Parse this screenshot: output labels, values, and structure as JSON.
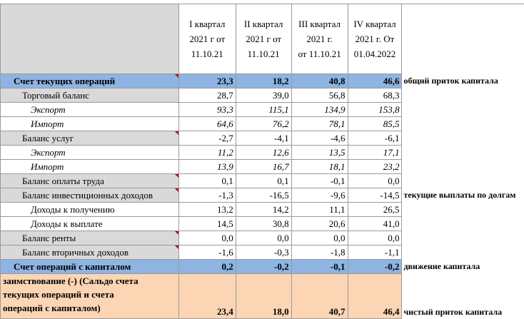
{
  "table": {
    "columns": [
      [
        "I квартал",
        "2021 г от",
        "11.10.21"
      ],
      [
        "II квартал",
        "2021 г от",
        "11.10.21"
      ],
      [
        "III квартал",
        "2021 г.",
        "от 11.10.21"
      ],
      [
        "IV квартал",
        "2021 г. От",
        "01.04.2022"
      ]
    ],
    "rows": [
      {
        "label": "Счет текущих операций",
        "values": [
          "23,3",
          "18,2",
          "40,8",
          "46,6"
        ],
        "note": "общий приток капитала"
      },
      {
        "label": "Торговый баланс",
        "values": [
          "28,7",
          "39,0",
          "56,8",
          "68,3"
        ]
      },
      {
        "label": "Экспорт",
        "values": [
          "93,3",
          "115,1",
          "134,9",
          "153,8"
        ]
      },
      {
        "label": "Импорт",
        "values": [
          "64,6",
          "76,2",
          "78,1",
          "85,5"
        ]
      },
      {
        "label": "Баланс услуг",
        "values": [
          "-2,7",
          "-4,1",
          "-4,6",
          "-6,1"
        ]
      },
      {
        "label": "Экспорт",
        "values": [
          "11,2",
          "12,6",
          "13,5",
          "17,1"
        ]
      },
      {
        "label": "Импорт",
        "values": [
          "13,9",
          "16,7",
          "18,1",
          "23,2"
        ]
      },
      {
        "label": "Баланс оплаты труда",
        "values": [
          "0,1",
          "0,1",
          "-0,1",
          "0,0"
        ]
      },
      {
        "label": "Баланс инвестиционных доходов",
        "values": [
          "-1,3",
          "-16,5",
          "-9,6",
          "-14,5"
        ],
        "note": "текущие выплаты по долгам"
      },
      {
        "label": "Доходы к получению",
        "values": [
          "13,2",
          "14,2",
          "11,1",
          "26,5"
        ]
      },
      {
        "label": "Доходы к выплате",
        "values": [
          "14,5",
          "30,8",
          "20,6",
          "41,0"
        ]
      },
      {
        "label": "Баланс ренты",
        "values": [
          "0,0",
          "0,0",
          "0,0",
          "0,0"
        ]
      },
      {
        "label": "Баланс вторичных доходов",
        "values": [
          "-1,6",
          "-0,3",
          "-1,8",
          "-1,1"
        ]
      },
      {
        "label": "Счет операций с капиталом",
        "values": [
          "0,2",
          "-0,2",
          "-0,1",
          "-0,2"
        ],
        "note": "движение капитала"
      },
      {
        "label": [
          "заимствование (-) (Сальдо счета",
          "текущих операций и счета",
          "операций с капиталом)"
        ],
        "values": [
          "23,4",
          "18,0",
          "40,7",
          "46,4"
        ],
        "note": "чистый приток капитала"
      }
    ]
  }
}
